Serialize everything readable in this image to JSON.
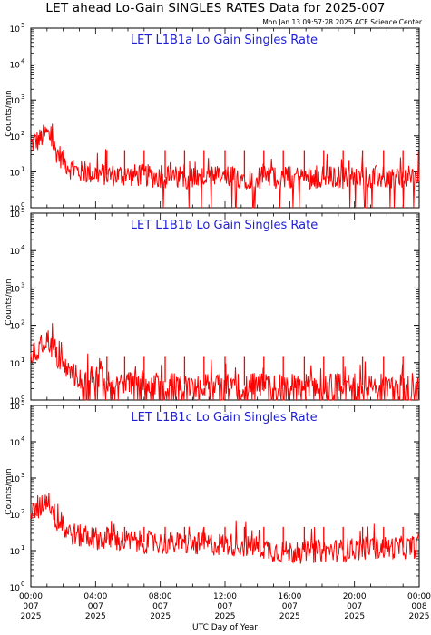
{
  "figure": {
    "title": "LET ahead Lo-Gain SINGLES RATES Data for 2025-007",
    "timestamp": "Mon Jan 13 09:57:28 2025 ACE Science Center"
  },
  "chart_data": [
    {
      "type": "line",
      "title": "LET L1B1a Lo Gain Singles Rate",
      "ylabel": "Counts/min",
      "xlabel": "",
      "yscale": "log",
      "ylim": [
        1,
        100000
      ],
      "y_ticks": [
        {
          "value": 1,
          "base": "10",
          "exp": "0"
        },
        {
          "value": 10,
          "base": "10",
          "exp": "1"
        },
        {
          "value": 100,
          "base": "10",
          "exp": "2"
        },
        {
          "value": 1000,
          "base": "10",
          "exp": "3"
        },
        {
          "value": 10000,
          "base": "10",
          "exp": "4"
        },
        {
          "value": 100000,
          "base": "10",
          "exp": "5"
        }
      ],
      "xlim": [
        0,
        24
      ],
      "color": "#ff0000",
      "series": [
        {
          "x": [
            0,
            0.5,
            1,
            1.5,
            2,
            2.5,
            3,
            4,
            5,
            6,
            7,
            8,
            9,
            10,
            11,
            12,
            13,
            14,
            15,
            16,
            17,
            18,
            19,
            20,
            21,
            22,
            23,
            24
          ],
          "y": [
            60,
            75,
            120,
            40,
            20,
            12,
            10,
            9,
            8,
            8,
            8,
            7,
            7,
            7,
            7,
            7,
            7,
            7,
            7,
            7,
            7,
            7,
            7,
            7,
            7,
            7,
            7,
            7
          ]
        }
      ],
      "spikes": {
        "x": [
          4.7,
          5.8,
          7.0,
          8.3,
          9.5,
          10.7,
          12.0,
          13.2,
          14.4,
          15.6,
          16.9,
          18.1,
          19.3,
          20.5,
          21.8,
          23.0
        ],
        "y": 40
      }
    },
    {
      "type": "line",
      "title": "LET L1B1b Lo Gain Singles Rate",
      "ylabel": "Counts/min",
      "xlabel": "",
      "yscale": "log",
      "ylim": [
        1,
        100000
      ],
      "y_ticks": [
        {
          "value": 1,
          "base": "10",
          "exp": "0"
        },
        {
          "value": 10,
          "base": "10",
          "exp": "1"
        },
        {
          "value": 100,
          "base": "10",
          "exp": "2"
        },
        {
          "value": 1000,
          "base": "10",
          "exp": "3"
        },
        {
          "value": 10000,
          "base": "10",
          "exp": "4"
        },
        {
          "value": 100000,
          "base": "10",
          "exp": "5"
        }
      ],
      "xlim": [
        0,
        24
      ],
      "color": "#ff0000",
      "series": [
        {
          "x": [
            0,
            0.5,
            1,
            1.5,
            2,
            2.5,
            3,
            4,
            5,
            6,
            7,
            8,
            9,
            10,
            11,
            12,
            13,
            14,
            15,
            16,
            17,
            18,
            19,
            20,
            21,
            22,
            23,
            24
          ],
          "y": [
            15,
            20,
            45,
            15,
            8,
            5,
            4,
            4,
            3,
            3,
            3,
            3,
            3,
            2.5,
            2.5,
            2.5,
            2.5,
            2.5,
            2.5,
            2.5,
            2.5,
            2.5,
            2.5,
            2.5,
            2.5,
            2.5,
            2.5,
            2.5
          ]
        }
      ],
      "spikes": {
        "x": [
          4.7,
          5.8,
          7.0,
          8.3,
          9.5,
          10.7,
          12.0,
          13.2,
          14.4,
          15.6,
          16.9,
          18.1,
          19.3,
          20.5,
          21.8,
          23.0
        ],
        "y": 15
      }
    },
    {
      "type": "line",
      "title": "LET L1B1c Lo Gain Singles Rate",
      "ylabel": "Counts/min",
      "xlabel": "UTC Day of Year",
      "yscale": "log",
      "ylim": [
        1,
        100000
      ],
      "y_ticks": [
        {
          "value": 1,
          "base": "10",
          "exp": "0"
        },
        {
          "value": 10,
          "base": "10",
          "exp": "1"
        },
        {
          "value": 100,
          "base": "10",
          "exp": "2"
        },
        {
          "value": 1000,
          "base": "10",
          "exp": "3"
        },
        {
          "value": 10000,
          "base": "10",
          "exp": "4"
        },
        {
          "value": 100000,
          "base": "10",
          "exp": "5"
        }
      ],
      "xlim": [
        0,
        24
      ],
      "x_ticks": [
        {
          "value": 0,
          "lines": [
            "00:00",
            "007",
            "2025"
          ]
        },
        {
          "value": 4,
          "lines": [
            "04:00",
            "007",
            "2025"
          ]
        },
        {
          "value": 8,
          "lines": [
            "08:00",
            "007",
            "2025"
          ]
        },
        {
          "value": 12,
          "lines": [
            "12:00",
            "007",
            "2025"
          ]
        },
        {
          "value": 16,
          "lines": [
            "16:00",
            "007",
            "2025"
          ]
        },
        {
          "value": 20,
          "lines": [
            "20:00",
            "007",
            "2025"
          ]
        },
        {
          "value": 24,
          "lines": [
            "00:00",
            "008",
            "2025"
          ]
        }
      ],
      "color": "#ff0000",
      "series": [
        {
          "x": [
            0,
            0.5,
            1,
            1.5,
            2,
            2.5,
            3,
            4,
            5,
            6,
            7,
            8,
            9,
            10,
            11,
            12,
            13,
            14,
            15,
            16,
            17,
            18,
            19,
            20,
            21,
            22,
            23,
            24
          ],
          "y": [
            100,
            130,
            280,
            80,
            40,
            30,
            25,
            22,
            20,
            18,
            17,
            16,
            16,
            15,
            15,
            15,
            14,
            13,
            10,
            9,
            9,
            10,
            10,
            11,
            12,
            12,
            12,
            13
          ]
        }
      ],
      "spikes": {
        "x": [
          4.7,
          5.8,
          7.0,
          8.3,
          9.5,
          10.7,
          12.0,
          13.2,
          14.4,
          15.6,
          16.9,
          18.1,
          19.3,
          20.5,
          21.8,
          23.0
        ],
        "y": 45
      }
    }
  ]
}
